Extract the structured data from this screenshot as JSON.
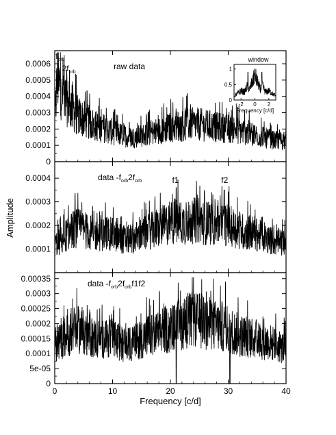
{
  "chart_data": {
    "type": "line",
    "xlabel": "Frequency [c/d]",
    "ylabel": "Amplitude",
    "xlim": [
      0,
      40
    ],
    "x_ticks": [
      "0",
      "10",
      "20",
      "30",
      "40"
    ],
    "panels": [
      {
        "id": "raw",
        "ylim": [
          0,
          0.00068
        ],
        "y_ticks": [
          "0",
          "0.0001",
          "0.0002",
          "0.0003",
          "0.0004",
          "0.0005",
          "0.0006"
        ],
        "title_parts": [
          "raw data"
        ],
        "series": [
          {
            "x": [
              0,
              0.25,
              0.5,
              0.75,
              1.0,
              1.25,
              1.5,
              1.75,
              2,
              2.5,
              3,
              3.5,
              4,
              4.5,
              5,
              6,
              7,
              8,
              9,
              10,
              11,
              12,
              13,
              14,
              15,
              16,
              17,
              18,
              19,
              20,
              21,
              22,
              23,
              24,
              25,
              26,
              27,
              28,
              29,
              30,
              31,
              32,
              33,
              34,
              35,
              36,
              37,
              38,
              39,
              40
            ],
            "y": [
              0.00025,
              0.0004,
              0.00052,
              0.00044,
              0.0005,
              0.00038,
              0.00048,
              0.00035,
              0.0004,
              0.00033,
              0.00034,
              0.0003,
              0.00028,
              0.00027,
              0.00026,
              0.00024,
              0.00022,
              0.00021,
              0.0002,
              0.00018,
              0.00017,
              0.00016,
              0.00015,
              0.00015,
              0.00016,
              0.00017,
              0.00018,
              0.00019,
              0.0002,
              0.00021,
              0.00022,
              0.00022,
              0.00023,
              0.00023,
              0.00023,
              0.00022,
              0.00022,
              0.00021,
              0.00021,
              0.0002,
              0.0002,
              0.00019,
              0.00018,
              0.00017,
              0.00016,
              0.00015,
              0.00014,
              0.00013,
              0.00013,
              0.00013
            ]
          }
        ],
        "annotations": [
          {
            "text": "f",
            "sub": "orb",
            "x": 0.5,
            "y": 0.00063
          },
          {
            "text": "2f",
            "sub": "orb",
            "x": 1.6,
            "y": 0.000555
          }
        ],
        "inset": {
          "title": "window",
          "xlabel": "Frequency [c/d]",
          "xlim": [
            -3,
            3
          ],
          "ylim": [
            0,
            1.15
          ],
          "x_ticks": [
            "-2",
            "0",
            "2"
          ],
          "y_ticks": [
            "0",
            "0.5",
            "1"
          ],
          "x": [
            -3,
            -2.5,
            -2,
            -1.5,
            -1.25,
            -1,
            -0.75,
            -0.5,
            -0.25,
            0,
            0.25,
            0.5,
            0.75,
            1,
            1.25,
            1.5,
            2,
            2.5,
            3
          ],
          "y": [
            0.15,
            0.25,
            0.35,
            0.3,
            0.45,
            0.55,
            0.4,
            0.6,
            0.75,
            1.0,
            0.75,
            0.6,
            0.4,
            0.55,
            0.45,
            0.3,
            0.35,
            0.25,
            0.15
          ]
        }
      },
      {
        "id": "prewhite1",
        "ylim": [
          0,
          0.00047
        ],
        "y_ticks": [
          "0.0001",
          "0.0002",
          "0.0003",
          "0.0004"
        ],
        "title_parts": [
          "data -f",
          "orb",
          "2f",
          "orb"
        ],
        "series": [
          {
            "x": [
              0,
              1,
              2,
              3,
              4,
              5,
              6,
              7,
              8,
              9,
              10,
              11,
              12,
              13,
              14,
              15,
              16,
              17,
              18,
              19,
              20,
              21,
              22,
              23,
              24,
              25,
              26,
              27,
              28,
              29,
              30,
              31,
              32,
              33,
              34,
              35,
              36,
              37,
              38,
              39,
              40
            ],
            "y": [
              0.00012,
              0.00013,
              0.00016,
              0.00018,
              0.00019,
              0.00018,
              0.00017,
              0.00016,
              0.00016,
              0.00017,
              0.00016,
              0.00015,
              0.00014,
              0.00014,
              0.00015,
              0.00016,
              0.00017,
              0.00018,
              0.00019,
              0.0002,
              0.00021,
              0.00022,
              0.00021,
              0.00021,
              0.00022,
              0.00022,
              0.00021,
              0.00021,
              0.0002,
              0.00021,
              0.0002,
              0.00019,
              0.00018,
              0.00017,
              0.00017,
              0.00016,
              0.00015,
              0.00014,
              0.00013,
              0.00013,
              0.00012
            ]
          }
        ],
        "annotations": [
          {
            "text": "f1",
            "x": 21.0,
            "y": 0.00038
          },
          {
            "text": "f2",
            "x": 29.5,
            "y": 0.00038
          }
        ]
      },
      {
        "id": "prewhite2",
        "ylim": [
          0,
          0.00037
        ],
        "y_ticks": [
          "0",
          "5e-05",
          "0.0001",
          "0.00015",
          "0.0002",
          "0.00025",
          "0.0003",
          "0.00035"
        ],
        "title_parts": [
          "data -f",
          "orb",
          "2f",
          "orb",
          "f1f2"
        ],
        "series": [
          {
            "x": [
              0,
              1,
              2,
              3,
              4,
              5,
              6,
              7,
              8,
              9,
              10,
              11,
              12,
              13,
              14,
              15,
              16,
              17,
              18,
              19,
              20,
              21,
              22,
              23,
              24,
              25,
              26,
              27,
              28,
              29,
              30,
              31,
              32,
              33,
              34,
              35,
              36,
              37,
              38,
              39,
              40
            ],
            "y": [
              0.00013,
              0.00014,
              0.00016,
              0.00017,
              0.00018,
              0.00017,
              0.00016,
              0.00015,
              0.00015,
              0.00015,
              0.00015,
              0.00014,
              0.00013,
              0.00013,
              0.00014,
              0.00015,
              0.00016,
              0.00016,
              0.00017,
              0.00018,
              0.00018,
              0.00019,
              0.0002,
              0.00021,
              0.00021,
              0.00021,
              0.0002,
              0.0002,
              0.00019,
              0.00019,
              0.00018,
              0.00017,
              0.00016,
              0.00016,
              0.00015,
              0.00015,
              0.00014,
              0.00014,
              0.00013,
              0.00012,
              0.00012
            ]
          }
        ],
        "annotations": []
      }
    ]
  }
}
